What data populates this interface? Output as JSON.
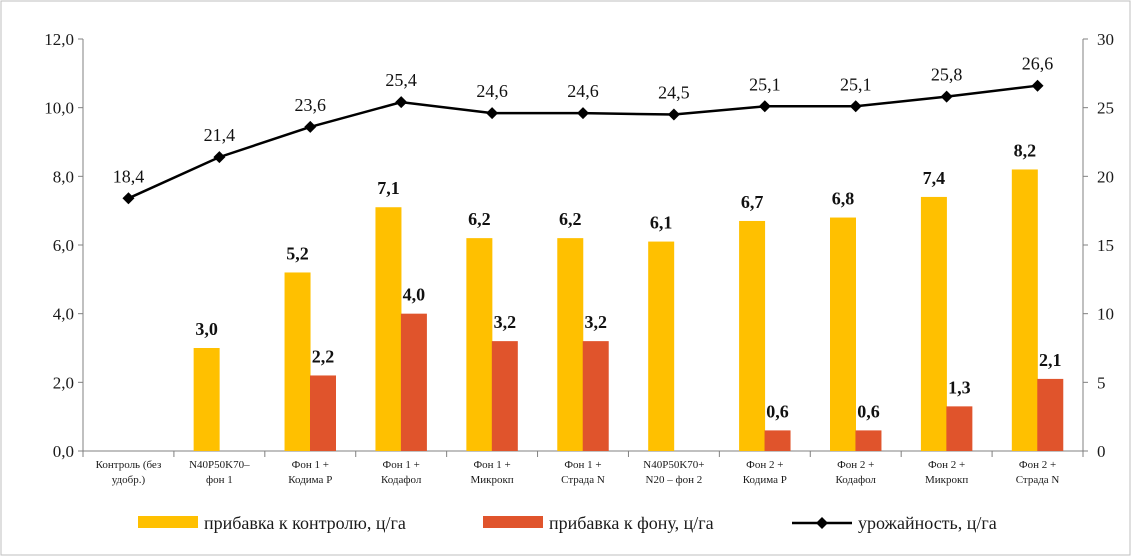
{
  "chart_data": {
    "type": "bar",
    "categories": [
      [
        "Контроль (без",
        "удобр.)"
      ],
      [
        "N40P50K70–",
        "фон 1"
      ],
      [
        "Фон 1 +",
        "Кодима Р"
      ],
      [
        "Фон 1 +",
        "Кодафол"
      ],
      [
        "Фон 1 +",
        "Микрокп"
      ],
      [
        "Фон 1 +",
        "Страда N"
      ],
      [
        "N40P50K70+",
        "N20 – фон 2"
      ],
      [
        "Фон 2 +",
        "Кодима Р"
      ],
      [
        "Фон 2 +",
        "Кодафол"
      ],
      [
        "Фон 2 +",
        "Микрокп"
      ],
      [
        "Фон 2 +",
        "Страда N"
      ]
    ],
    "series": [
      {
        "name": "прибавка к контролю, ц/га",
        "kind": "bar",
        "axis": "left",
        "color": "#FFC000",
        "values": [
          null,
          3.0,
          5.2,
          7.1,
          6.2,
          6.2,
          6.1,
          6.7,
          6.8,
          7.4,
          8.2
        ],
        "labels": [
          "",
          "3,0",
          "5,2",
          "7,1",
          "6,2",
          "6,2",
          "6,1",
          "6,7",
          "6,8",
          "7,4",
          "8,2"
        ]
      },
      {
        "name": "прибавка к фону, ц/га",
        "kind": "bar",
        "axis": "left",
        "color": "#E0542C",
        "values": [
          null,
          null,
          2.2,
          4.0,
          3.2,
          3.2,
          null,
          0.6,
          0.6,
          1.3,
          2.1
        ],
        "labels": [
          "",
          "",
          "2,2",
          "4,0",
          "3,2",
          "3,2",
          "",
          "0,6",
          "0,6",
          "1,3",
          "2,1"
        ]
      },
      {
        "name": "урожайность, ц/га",
        "kind": "line",
        "axis": "right",
        "color": "#000000",
        "marker": "diamond",
        "values": [
          18.4,
          21.4,
          23.6,
          25.4,
          24.6,
          24.6,
          24.5,
          25.1,
          25.1,
          25.8,
          26.6
        ],
        "labels": [
          "18,4",
          "21,4",
          "23,6",
          "25,4",
          "24,6",
          "24,6",
          "24,5",
          "25,1",
          "25,1",
          "25,8",
          "26,6"
        ]
      }
    ],
    "y_left": {
      "ylim": [
        0,
        12
      ],
      "ticks": [
        0,
        2,
        4,
        6,
        8,
        10,
        12
      ],
      "tick_labels": [
        "0,0",
        "2,0",
        "4,0",
        "6,0",
        "8,0",
        "10,0",
        "12,0"
      ]
    },
    "y_right": {
      "ylim": [
        0,
        30
      ],
      "ticks": [
        0,
        5,
        10,
        15,
        20,
        25,
        30
      ],
      "tick_labels": [
        "0",
        "5",
        "10",
        "15",
        "20",
        "25",
        "30"
      ]
    },
    "grid": false,
    "legend_position": "bottom"
  }
}
